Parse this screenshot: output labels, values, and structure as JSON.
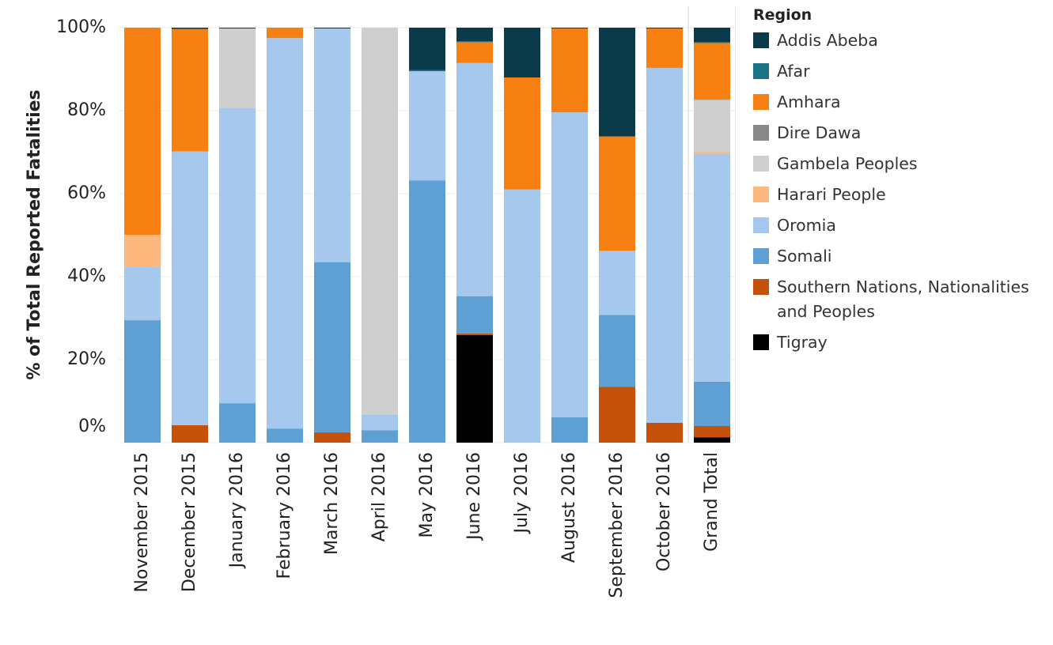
{
  "chart_data": {
    "type": "stacked_bar",
    "y_label": "% of Total Reported Fatalities",
    "legend_title": "Region",
    "legend_position": "right",
    "grid": true,
    "categories": [
      "November 2015",
      "December 2015",
      "January 2016",
      "February 2016",
      "March 2016",
      "April 2016",
      "May 2016",
      "June 2016",
      "July 2016",
      "August 2016",
      "September 2016",
      "October 2016",
      "Grand Total"
    ],
    "ylim": [
      0,
      100
    ],
    "yticks": [
      {
        "value": 0,
        "label": "0%"
      },
      {
        "value": 20,
        "label": "20%"
      },
      {
        "value": 40,
        "label": "40%"
      },
      {
        "value": 60,
        "label": "60%"
      },
      {
        "value": 80,
        "label": "80%"
      },
      {
        "value": 100,
        "label": "100%"
      }
    ],
    "series": [
      {
        "name": "Addis Abeba",
        "color": "#0b3a4a",
        "values": [
          0,
          0.3,
          0.2,
          0,
          0.2,
          0,
          10.2,
          3.3,
          12,
          0.2,
          26.2,
          0.2,
          3.5
        ]
      },
      {
        "name": "Afar",
        "color": "#1a7287",
        "values": [
          0,
          0,
          0,
          0,
          0,
          0,
          0.3,
          0.2,
          0,
          0,
          0,
          0,
          0.2
        ]
      },
      {
        "name": "Amhara",
        "color": "#f78012",
        "values": [
          49.9,
          29.5,
          0,
          2.5,
          0,
          0,
          0,
          5,
          27,
          20.2,
          27.6,
          9.5,
          13.5
        ]
      },
      {
        "name": "Dire Dawa",
        "color": "#898989",
        "values": [
          0,
          0,
          0,
          0,
          0,
          0,
          0,
          0,
          0,
          0,
          0,
          0,
          0.2
        ]
      },
      {
        "name": "Gambela Peoples",
        "color": "#cfcfcf",
        "values": [
          0,
          0,
          19.1,
          0,
          0,
          93.2,
          0,
          0,
          0,
          0,
          0,
          0,
          12.6
        ]
      },
      {
        "name": "Harari People",
        "color": "#fdb87d",
        "values": [
          7.8,
          0,
          0,
          0,
          0,
          0,
          0,
          0,
          0,
          0,
          0,
          0,
          0.4
        ]
      },
      {
        "name": "Oromia",
        "color": "#a5c8ec",
        "values": [
          12.8,
          66,
          71.2,
          94.1,
          56.3,
          3.8,
          26.3,
          56.2,
          61,
          73.5,
          15.4,
          85.5,
          54.9
        ]
      },
      {
        "name": "Somali",
        "color": "#5e9fd4",
        "values": [
          29.5,
          0,
          9.5,
          3.4,
          41,
          3,
          63.2,
          9,
          0,
          6.1,
          17.3,
          0,
          10.7
        ]
      },
      {
        "name": "Southern Nations, Nationalities and Peoples",
        "color": "#c6510b",
        "values": [
          0,
          4.2,
          0,
          0,
          2.5,
          0,
          0,
          0.4,
          0,
          0,
          13.5,
          4.8,
          2.7
        ]
      },
      {
        "name": "Tigray",
        "color": "#000000",
        "values": [
          0,
          0,
          0,
          0,
          0,
          0,
          0,
          25.9,
          0,
          0,
          0,
          0,
          1.3
        ]
      }
    ]
  }
}
